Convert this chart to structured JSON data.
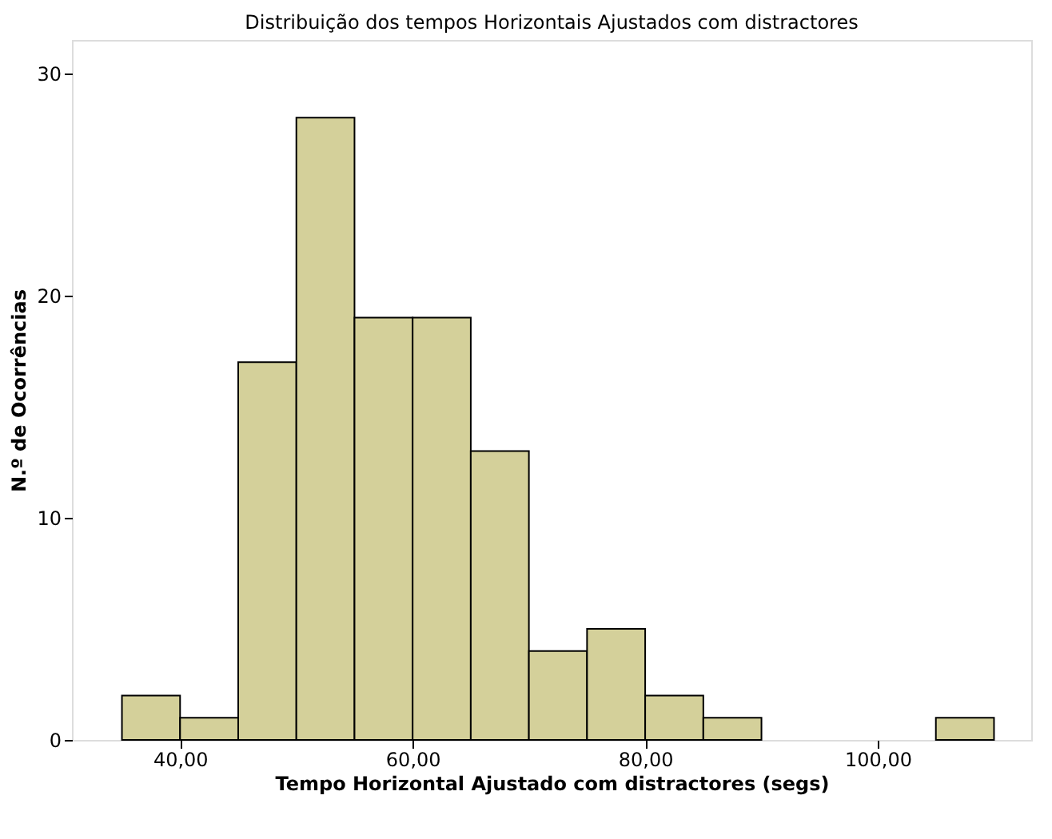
{
  "chart_data": {
    "type": "histogram",
    "title": "Distribuição dos tempos Horizontais Ajustados com distractores",
    "xlabel": "Tempo Horizontal Ajustado com distractores (segs)",
    "ylabel": "N.º de Ocorrências",
    "bins": [
      35,
      40,
      45,
      50,
      55,
      60,
      65,
      70,
      75,
      80,
      85,
      90,
      95,
      100,
      105,
      110
    ],
    "values": [
      2,
      1,
      17,
      28,
      19,
      19,
      13,
      4,
      5,
      2,
      1,
      0,
      0,
      0,
      1
    ],
    "color": "#d4d09a",
    "xlim": [
      30.7,
      113.2
    ],
    "ylim": [
      0,
      31.5
    ],
    "xticks": [
      {
        "value": 40,
        "label": "40,00"
      },
      {
        "value": 60,
        "label": "60,00"
      },
      {
        "value": 80,
        "label": "80,00"
      },
      {
        "value": 100,
        "label": "100,00"
      }
    ],
    "yticks": [
      0,
      10,
      20,
      30
    ],
    "grid": false
  }
}
